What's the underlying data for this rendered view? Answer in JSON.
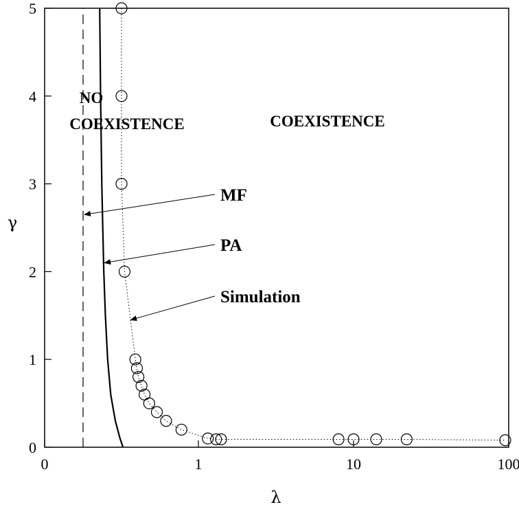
{
  "chart_data": {
    "type": "line",
    "x_scale": "log",
    "x_ticks": [
      {
        "value": 0,
        "label": "0"
      },
      {
        "value": 1,
        "label": "1"
      },
      {
        "value": 10,
        "label": "10"
      },
      {
        "value": 100,
        "label": "100"
      }
    ],
    "y_ticks": [
      {
        "value": 0,
        "label": "0"
      },
      {
        "value": 1,
        "label": "1"
      },
      {
        "value": 2,
        "label": "2"
      },
      {
        "value": 3,
        "label": "3"
      },
      {
        "value": 4,
        "label": "4"
      },
      {
        "value": 5,
        "label": "5"
      }
    ],
    "ylim": [
      0,
      5
    ],
    "xlabel": "λ",
    "ylabel": "γ",
    "grid": false,
    "series": [
      {
        "name": "MF",
        "style": "dashed",
        "points": [
          [
            0.25,
            0
          ],
          [
            0.25,
            5
          ]
        ]
      },
      {
        "name": "PA",
        "style": "solid",
        "points": [
          [
            0.51,
            0
          ],
          [
            0.49,
            0.1
          ],
          [
            0.46,
            0.3
          ],
          [
            0.43,
            0.6
          ],
          [
            0.41,
            1.0
          ],
          [
            0.395,
            1.5
          ],
          [
            0.385,
            2.0
          ],
          [
            0.378,
            2.5
          ],
          [
            0.372,
            3.0
          ],
          [
            0.368,
            3.5
          ],
          [
            0.364,
            4.0
          ],
          [
            0.361,
            4.5
          ],
          [
            0.358,
            5.0
          ]
        ]
      },
      {
        "name": "Simulation",
        "style": "dotted-markers",
        "points": [
          [
            0.5,
            5.0
          ],
          [
            0.5,
            4.0
          ],
          [
            0.5,
            3.0
          ],
          [
            0.52,
            2.0
          ],
          [
            0.59,
            1.0
          ],
          [
            0.6,
            0.9
          ],
          [
            0.61,
            0.8
          ],
          [
            0.63,
            0.7
          ],
          [
            0.65,
            0.6
          ],
          [
            0.68,
            0.5
          ],
          [
            0.73,
            0.4
          ],
          [
            0.79,
            0.3
          ],
          [
            0.89,
            0.2
          ],
          [
            1.15,
            0.1
          ],
          [
            1.3,
            0.09
          ],
          [
            1.4,
            0.09
          ],
          [
            8.0,
            0.09
          ],
          [
            10.0,
            0.09
          ],
          [
            14.0,
            0.09
          ],
          [
            22.0,
            0.09
          ],
          [
            95.0,
            0.08
          ]
        ]
      }
    ],
    "annotations": [
      {
        "text": "NO",
        "role": "region"
      },
      {
        "text": "COEXISTENCE",
        "role": "region"
      },
      {
        "text": "COEXISTENCE",
        "role": "region"
      },
      {
        "text": "MF",
        "role": "arrow-label",
        "target": [
          0.25,
          2.65
        ]
      },
      {
        "text": "PA",
        "role": "arrow-label",
        "target": [
          0.38,
          2.1
        ]
      },
      {
        "text": "Simulation",
        "role": "arrow-label",
        "target": [
          0.55,
          1.45
        ]
      }
    ]
  }
}
